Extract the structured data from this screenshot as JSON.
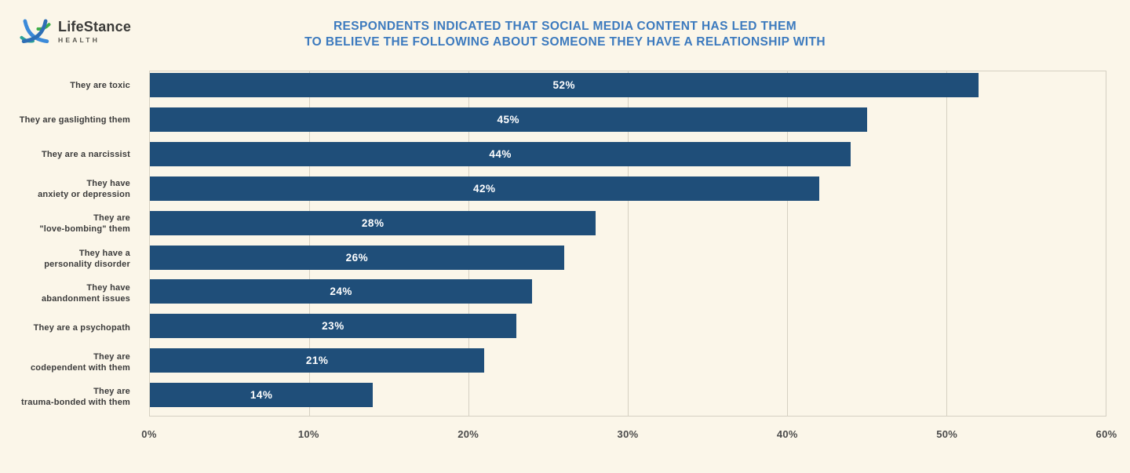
{
  "theme": {
    "background": "#fbf6e9",
    "bar_color": "#1f4e79",
    "title_color": "#3c7abe",
    "grid_color": "#d5d0c2",
    "axis_text_color": "#4b4b4b",
    "category_text_color": "#3b3b3b",
    "value_text_color": "#ffffff"
  },
  "logo": {
    "brand": "LifeStance",
    "sub": "HEALTH"
  },
  "title": {
    "line1": "RESPONDENTS INDICATED THAT SOCIAL MEDIA CONTENT HAS LED THEM",
    "line2": "TO BELIEVE THE FOLLOWING ABOUT SOMEONE THEY HAVE A RELATIONSHIP WITH"
  },
  "chart_data": {
    "type": "bar",
    "orientation": "horizontal",
    "title": "RESPONDENTS INDICATED THAT SOCIAL MEDIA CONTENT HAS LED THEM TO BELIEVE THE FOLLOWING ABOUT SOMEONE THEY HAVE A RELATIONSHIP WITH",
    "categories": [
      "They are toxic",
      "They are gaslighting them",
      "They are a narcissist",
      "They have anxiety or depression",
      "They are \"love-bombing\" them",
      "They have a personality disorder",
      "They have abandonment issues",
      "They are a psychopath",
      "They are codependent with them",
      "They are trauma-bonded with them"
    ],
    "label_lines": [
      [
        "They are toxic"
      ],
      [
        "They are gaslighting them"
      ],
      [
        "They are a narcissist"
      ],
      [
        "They have",
        "anxiety or depression"
      ],
      [
        "They are",
        "\"love-bombing\" them"
      ],
      [
        "They have a",
        "personality disorder"
      ],
      [
        "They have",
        "abandonment issues"
      ],
      [
        "They are a psychopath"
      ],
      [
        "They are",
        "codependent with them"
      ],
      [
        "They are",
        "trauma-bonded with them"
      ]
    ],
    "values": [
      52,
      45,
      44,
      42,
      28,
      26,
      24,
      23,
      21,
      14
    ],
    "value_labels": [
      "52%",
      "45%",
      "44%",
      "42%",
      "28%",
      "26%",
      "24%",
      "23%",
      "21%",
      "14%"
    ],
    "xlim": [
      0,
      60
    ],
    "x_ticks": [
      "0%",
      "10%",
      "20%",
      "30%",
      "40%",
      "50%",
      "60%"
    ],
    "x_tick_values": [
      0,
      10,
      20,
      30,
      40,
      50,
      60
    ],
    "grid": true,
    "legend": false,
    "value_label_position": "center-of-bar"
  }
}
